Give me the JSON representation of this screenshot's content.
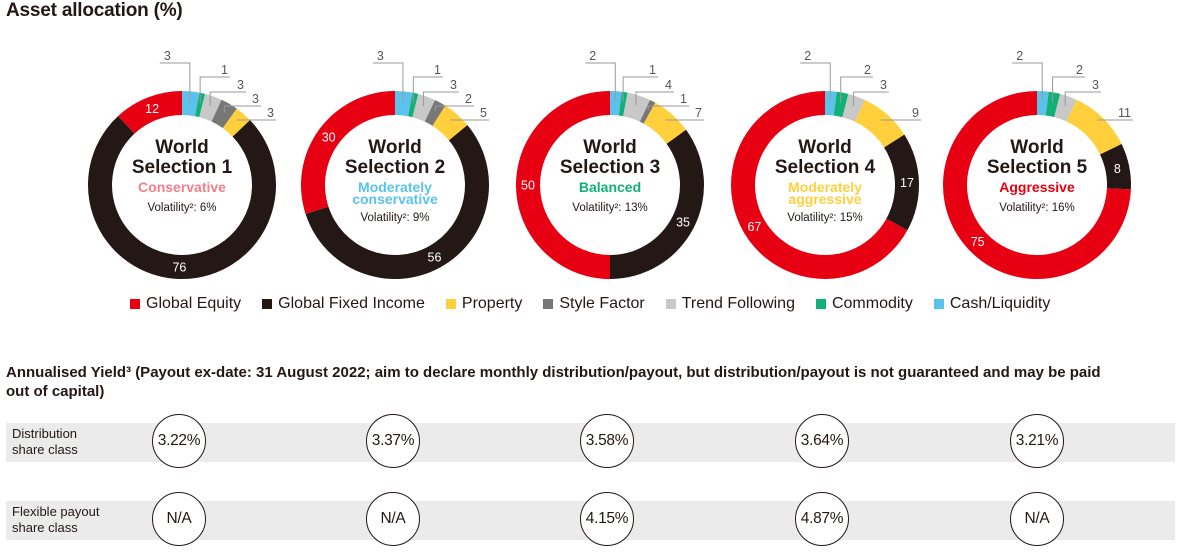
{
  "title": "Asset allocation (%)",
  "colors": {
    "equity": "#E60012",
    "fixed_income": "#231815",
    "property": "#FFD03C",
    "style_factor": "#777777",
    "trend_following": "#C8C8C8",
    "commodity": "#12B076",
    "cash": "#5BC2EC"
  },
  "legend": [
    {
      "key": "equity",
      "label": "Global Equity"
    },
    {
      "key": "fixed_income",
      "label": "Global Fixed Income"
    },
    {
      "key": "property",
      "label": "Property"
    },
    {
      "key": "style_factor",
      "label": "Style Factor"
    },
    {
      "key": "trend_following",
      "label": "Trend Following"
    },
    {
      "key": "commodity",
      "label": "Commodity"
    },
    {
      "key": "cash",
      "label": "Cash/Liquidity"
    }
  ],
  "chart_data": [
    {
      "type": "pie",
      "title": "World Selection 1",
      "name_line1": "World",
      "name_line2": "Selection 1",
      "risk_profile": [
        "Conservative"
      ],
      "risk_color": "#F0808A",
      "volatility": "Volatility²: 6%",
      "categories": [
        "Cash/Liquidity",
        "Commodity",
        "Trend Following",
        "Style Factor",
        "Property",
        "Global Fixed Income",
        "Global Equity"
      ],
      "values": [
        3,
        1,
        3,
        3,
        3,
        76,
        12
      ]
    },
    {
      "type": "pie",
      "title": "World Selection 2",
      "name_line1": "World",
      "name_line2": "Selection 2",
      "risk_profile": [
        "Moderately",
        "conservative"
      ],
      "risk_color": "#5BC2EC",
      "volatility": "Volatility²: 9%",
      "categories": [
        "Cash/Liquidity",
        "Commodity",
        "Trend Following",
        "Style Factor",
        "Property",
        "Global Fixed Income",
        "Global Equity"
      ],
      "values": [
        3,
        1,
        3,
        2,
        5,
        56,
        30
      ]
    },
    {
      "type": "pie",
      "title": "World Selection 3",
      "name_line1": "World",
      "name_line2": "Selection 3",
      "risk_profile": [
        "Balanced"
      ],
      "risk_color": "#12B076",
      "volatility": "Volatility²: 13%",
      "categories": [
        "Cash/Liquidity",
        "Commodity",
        "Trend Following",
        "Style Factor",
        "Property",
        "Global Fixed Income",
        "Global Equity"
      ],
      "values": [
        2,
        1,
        4,
        1,
        7,
        35,
        50
      ]
    },
    {
      "type": "pie",
      "title": "World Selection 4",
      "name_line1": "World",
      "name_line2": "Selection 4",
      "risk_profile": [
        "Moderately",
        "aggressive"
      ],
      "risk_color": "#FFD03C",
      "volatility": "Volatility²: 15%",
      "categories": [
        "Cash/Liquidity",
        "Commodity",
        "Trend Following",
        "Style Factor",
        "Property",
        "Global Fixed Income",
        "Global Equity"
      ],
      "values": [
        2,
        2,
        3,
        0,
        9,
        17,
        67
      ]
    },
    {
      "type": "pie",
      "title": "World Selection 5",
      "name_line1": "World",
      "name_line2": "Selection 5",
      "risk_profile": [
        "Aggressive"
      ],
      "risk_color": "#E60012",
      "volatility": "Volatility²: 16%",
      "categories": [
        "Cash/Liquidity",
        "Commodity",
        "Trend Following",
        "Style Factor",
        "Property",
        "Global Fixed Income",
        "Global Equity"
      ],
      "values": [
        2,
        2,
        3,
        0,
        11,
        8,
        75
      ]
    }
  ],
  "yield": {
    "title": "Annualised Yield³ (Payout ex-date: 31 August 2022; aim to declare monthly distribution/payout, but distribution/payout is not guaranteed and may be paid out of capital)",
    "rows": [
      {
        "label_line1": "Distribution",
        "label_line2": "share class",
        "values": [
          "3.22%",
          "3.37%",
          "3.58%",
          "3.64%",
          "3.21%"
        ]
      },
      {
        "label_line1": "Flexible payout",
        "label_line2": "share class",
        "values": [
          "N/A",
          "N/A",
          "4.15%",
          "4.87%",
          "N/A"
        ]
      }
    ]
  }
}
